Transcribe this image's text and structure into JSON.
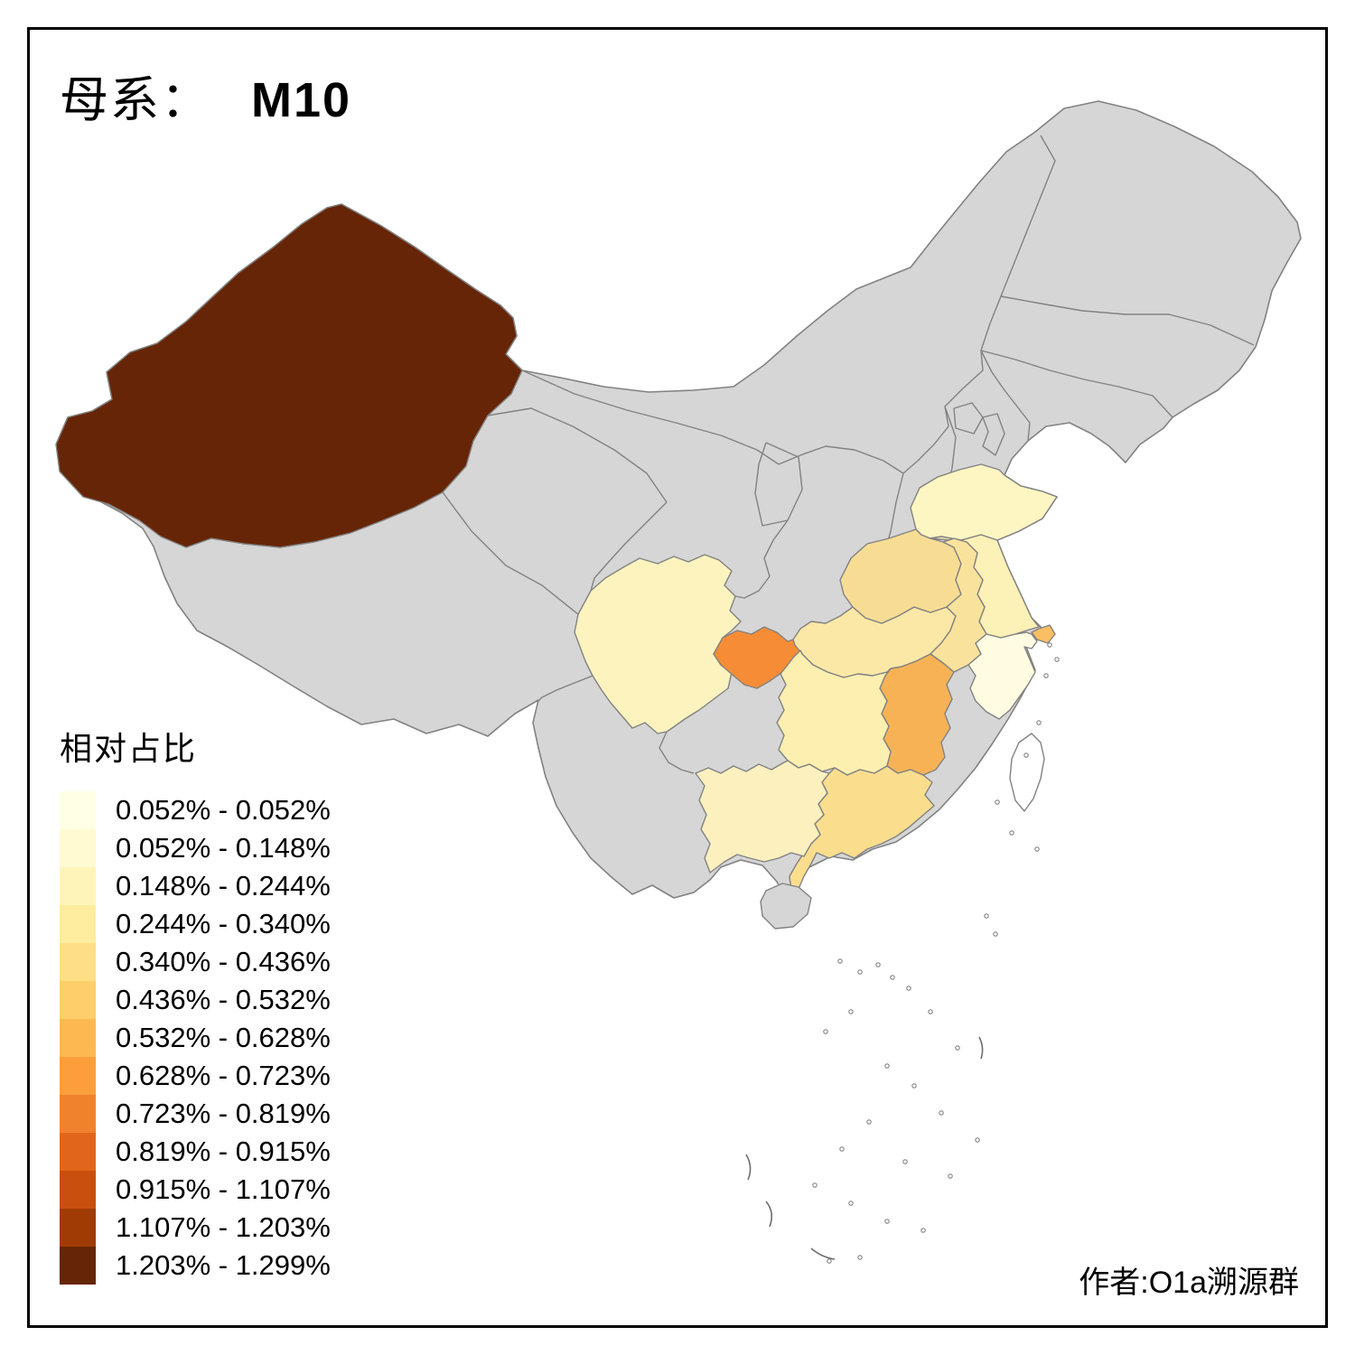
{
  "title": {
    "label": "母系：",
    "value": "M10"
  },
  "legend": {
    "title": "相对占比",
    "bins": [
      {
        "label": "0.052% - 0.052%",
        "color": "#FFFFE5"
      },
      {
        "label": "0.052% - 0.148%",
        "color": "#FFFAD1"
      },
      {
        "label": "0.148% - 0.244%",
        "color": "#FFF4B8"
      },
      {
        "label": "0.244% - 0.340%",
        "color": "#FEEC9F"
      },
      {
        "label": "0.340% - 0.436%",
        "color": "#FEDF86"
      },
      {
        "label": "0.436% - 0.532%",
        "color": "#FECE6B"
      },
      {
        "label": "0.532% - 0.628%",
        "color": "#FEB852"
      },
      {
        "label": "0.628% - 0.723%",
        "color": "#FB9E3B"
      },
      {
        "label": "0.723% - 0.819%",
        "color": "#F0822D"
      },
      {
        "label": "0.819% - 0.915%",
        "color": "#E0661C"
      },
      {
        "label": "0.915% - 1.107%",
        "color": "#C94F0E"
      },
      {
        "label": "1.107% - 1.203%",
        "color": "#A03B05"
      },
      {
        "label": "1.203% - 1.299%",
        "color": "#662506"
      }
    ]
  },
  "credit": "作者:O1a溯源群",
  "map": {
    "base_fill": "#D6D6D6",
    "border_color": "#828282",
    "sea_fill": "#FFFFFF",
    "provinces": [
      {
        "id": "xinjiang",
        "fill": "#662506"
      },
      {
        "id": "sichuan",
        "fill": "#FDF3BE"
      },
      {
        "id": "chongqing",
        "fill": "#F68C35"
      },
      {
        "id": "hubei",
        "fill": "#FBE8A6"
      },
      {
        "id": "henan",
        "fill": "#F7DD94"
      },
      {
        "id": "shandong",
        "fill": "#FDF5C2"
      },
      {
        "id": "jiangsu",
        "fill": "#FCF1B6"
      },
      {
        "id": "anhui",
        "fill": "#F9E29C"
      },
      {
        "id": "zhejiang",
        "fill": "#FFFCE2"
      },
      {
        "id": "shanghai",
        "fill": "#FBBE62"
      },
      {
        "id": "jiangxi",
        "fill": "#F7B256"
      },
      {
        "id": "hunan",
        "fill": "#FCEFB0"
      },
      {
        "id": "guangdong",
        "fill": "#FADE8E"
      },
      {
        "id": "guangxi",
        "fill": "#FBF0BE"
      },
      {
        "id": "hainan",
        "fill": "#D6D6D6"
      },
      {
        "id": "taiwan",
        "fill": "#FFFFFF"
      }
    ]
  }
}
